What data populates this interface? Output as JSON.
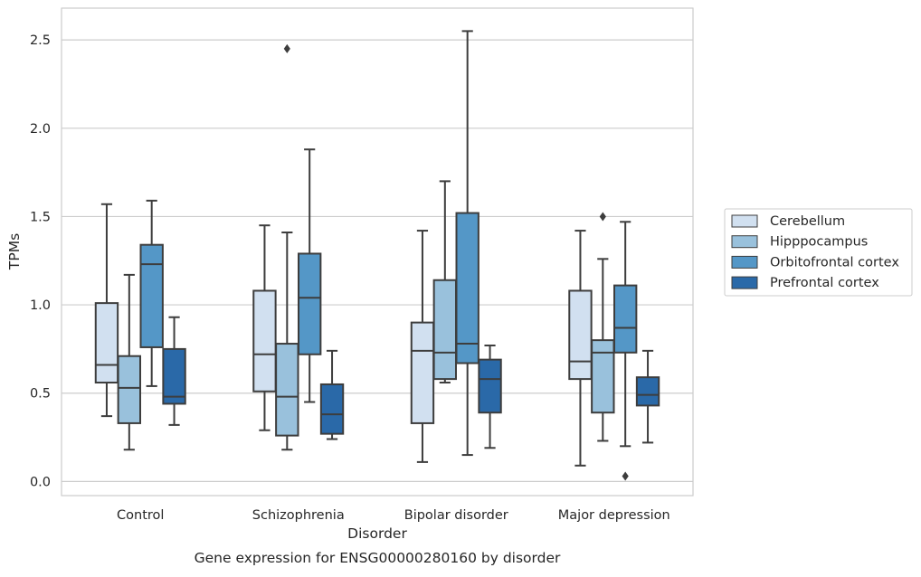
{
  "caption": "Gene expression for ENSG00000280160 by disorder",
  "chart_data": {
    "type": "boxplot",
    "xlabel": "Disorder",
    "ylabel": "TPMs",
    "ylim": [
      -0.08,
      2.68
    ],
    "yticks": [
      0.0,
      0.5,
      1.0,
      1.5,
      2.0,
      2.5
    ],
    "ytick_labels": [
      "0.0",
      "0.5",
      "1.0",
      "1.5",
      "2.0",
      "2.5"
    ],
    "grid": "horizontal",
    "legend_position": "right",
    "categories": [
      "Control",
      "Schizophrenia",
      "Bipolar disorder",
      "Major depression"
    ],
    "series": [
      {
        "name": "Cerebellum",
        "color": "#d1e0f0",
        "boxes": [
          {
            "whislo": 0.37,
            "q1": 0.56,
            "med": 0.66,
            "q3": 1.01,
            "whishi": 1.57,
            "fliers": []
          },
          {
            "whislo": 0.29,
            "q1": 0.51,
            "med": 0.72,
            "q3": 1.08,
            "whishi": 1.45,
            "fliers": []
          },
          {
            "whislo": 0.11,
            "q1": 0.33,
            "med": 0.74,
            "q3": 0.9,
            "whishi": 1.42,
            "fliers": []
          },
          {
            "whislo": 0.09,
            "q1": 0.58,
            "med": 0.68,
            "q3": 1.08,
            "whishi": 1.42,
            "fliers": []
          }
        ]
      },
      {
        "name": "Hipppocampus",
        "color": "#99c1dc",
        "boxes": [
          {
            "whislo": 0.18,
            "q1": 0.33,
            "med": 0.53,
            "q3": 0.71,
            "whishi": 1.17,
            "fliers": []
          },
          {
            "whislo": 0.18,
            "q1": 0.26,
            "med": 0.48,
            "q3": 0.78,
            "whishi": 1.41,
            "fliers": [
              2.45
            ]
          },
          {
            "whislo": 0.56,
            "q1": 0.58,
            "med": 0.73,
            "q3": 1.14,
            "whishi": 1.7,
            "fliers": []
          },
          {
            "whislo": 0.23,
            "q1": 0.39,
            "med": 0.73,
            "q3": 0.8,
            "whishi": 1.26,
            "fliers": [
              1.5
            ]
          }
        ]
      },
      {
        "name": "Orbitofrontal cortex",
        "color": "#5497c7",
        "boxes": [
          {
            "whislo": 0.54,
            "q1": 0.76,
            "med": 1.23,
            "q3": 1.34,
            "whishi": 1.59,
            "fliers": []
          },
          {
            "whislo": 0.45,
            "q1": 0.72,
            "med": 1.04,
            "q3": 1.29,
            "whishi": 1.88,
            "fliers": []
          },
          {
            "whislo": 0.15,
            "q1": 0.67,
            "med": 0.78,
            "q3": 1.52,
            "whishi": 2.55,
            "fliers": []
          },
          {
            "whislo": 0.2,
            "q1": 0.73,
            "med": 0.87,
            "q3": 1.11,
            "whishi": 1.47,
            "fliers": [
              0.03
            ]
          }
        ]
      },
      {
        "name": "Prefrontal cortex",
        "color": "#2a69a8",
        "boxes": [
          {
            "whislo": 0.32,
            "q1": 0.44,
            "med": 0.48,
            "q3": 0.75,
            "whishi": 0.93,
            "fliers": []
          },
          {
            "whislo": 0.24,
            "q1": 0.27,
            "med": 0.38,
            "q3": 0.55,
            "whishi": 0.74,
            "fliers": []
          },
          {
            "whislo": 0.19,
            "q1": 0.39,
            "med": 0.58,
            "q3": 0.69,
            "whishi": 0.77,
            "fliers": []
          },
          {
            "whislo": 0.22,
            "q1": 0.43,
            "med": 0.49,
            "q3": 0.59,
            "whishi": 0.74,
            "fliers": []
          }
        ]
      }
    ]
  }
}
